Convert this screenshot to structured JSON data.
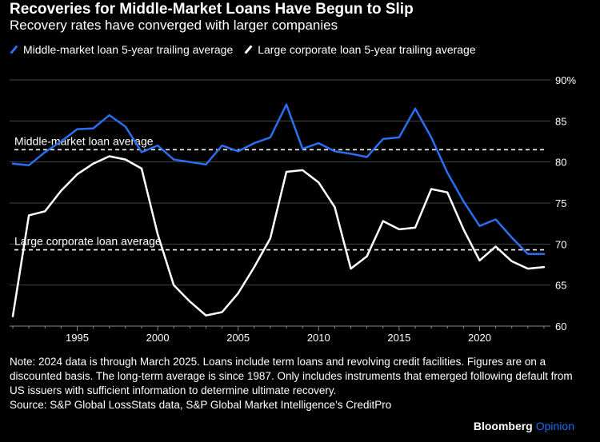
{
  "header": {
    "title": "Recoveries for Middle-Market Loans Have Begun to Slip",
    "subtitle": "Recovery rates have converged with larger companies"
  },
  "legend": {
    "series_0": "Middle-market loan 5-year trailing average",
    "series_1": "Large corporate loan 5-year trailing average"
  },
  "colors": {
    "background": "#000000",
    "middle_market": "#2a6ff2",
    "large_corporate": "#ffffff",
    "gridline": "#444444",
    "brand_accent": "#1f6cf0"
  },
  "chart_data": {
    "type": "line",
    "title": "Recoveries for Middle-Market Loans Have Begun to Slip",
    "subtitle": "Recovery rates have converged with larger companies",
    "xlabel": "",
    "ylabel": "",
    "xlim": [
      1990.8,
      2024.4
    ],
    "ylim": [
      60,
      90
    ],
    "y_ticks": [
      60,
      65,
      70,
      75,
      80,
      85,
      90
    ],
    "y_tick_labels": [
      "60",
      "65",
      "70",
      "75",
      "80",
      "85",
      "90%"
    ],
    "x_ticks": [
      1995,
      2000,
      2005,
      2010,
      2015,
      2020
    ],
    "x_tick_labels": [
      "1995",
      "2000",
      "2005",
      "2010",
      "2015",
      "2020"
    ],
    "grid": true,
    "series": [
      {
        "name": "Middle-market loan 5-year trailing average",
        "x": [
          1991,
          1992,
          1993,
          1994,
          1995,
          1996,
          1997,
          1998,
          1999,
          2000,
          2001,
          2002,
          2003,
          2004,
          2005,
          2006,
          2007,
          2008,
          2009,
          2010,
          2011,
          2012,
          2013,
          2014,
          2015,
          2016,
          2017,
          2018,
          2019,
          2020,
          2021,
          2022,
          2023,
          2024
        ],
        "values": [
          79.8,
          79.6,
          81.2,
          82.5,
          84.0,
          84.1,
          85.7,
          84.3,
          81.2,
          82.0,
          80.3,
          80.0,
          79.7,
          82.0,
          81.3,
          82.3,
          83.0,
          87.0,
          81.6,
          82.3,
          81.3,
          81.0,
          80.6,
          82.8,
          83.0,
          86.5,
          83.0,
          78.7,
          75.2,
          72.2,
          73.0,
          70.8,
          68.8,
          68.8
        ]
      },
      {
        "name": "Large corporate loan 5-year trailing average",
        "x": [
          1991,
          1992,
          1993,
          1994,
          1995,
          1996,
          1997,
          1998,
          1999,
          2000,
          2001,
          2002,
          2003,
          2004,
          2005,
          2006,
          2007,
          2008,
          2009,
          2010,
          2011,
          2012,
          2013,
          2014,
          2015,
          2016,
          2017,
          2018,
          2019,
          2020,
          2021,
          2022,
          2023,
          2024
        ],
        "values": [
          61.2,
          73.5,
          74.0,
          76.5,
          78.5,
          79.8,
          80.7,
          80.3,
          79.2,
          71.2,
          65.0,
          63.0,
          61.3,
          61.7,
          64.0,
          67.2,
          70.7,
          78.8,
          79.0,
          77.5,
          74.5,
          67.0,
          68.5,
          72.8,
          71.8,
          72.0,
          76.7,
          76.3,
          71.8,
          68.0,
          69.7,
          67.9,
          67.0,
          67.2
        ]
      }
    ],
    "reference_lines": [
      {
        "label": "Middle-market loan average",
        "value": 81.5
      },
      {
        "label": "Large corporate loan average",
        "value": 69.3
      }
    ]
  },
  "footer": {
    "note": "Note: 2024 data is through March 2025. Loans include term loans and revolving credit facilities. Figures are on a discounted basis. The long-term average is since 1987. Only includes instruments that emerged following default from US issuers with sufficient information to determine ultimate recovery.",
    "source": "Source: S&P Global LossStats data, S&P Global Market Intelligence’s CreditPro",
    "brand_name": "Bloomberg",
    "brand_suffix": "Opinion"
  }
}
